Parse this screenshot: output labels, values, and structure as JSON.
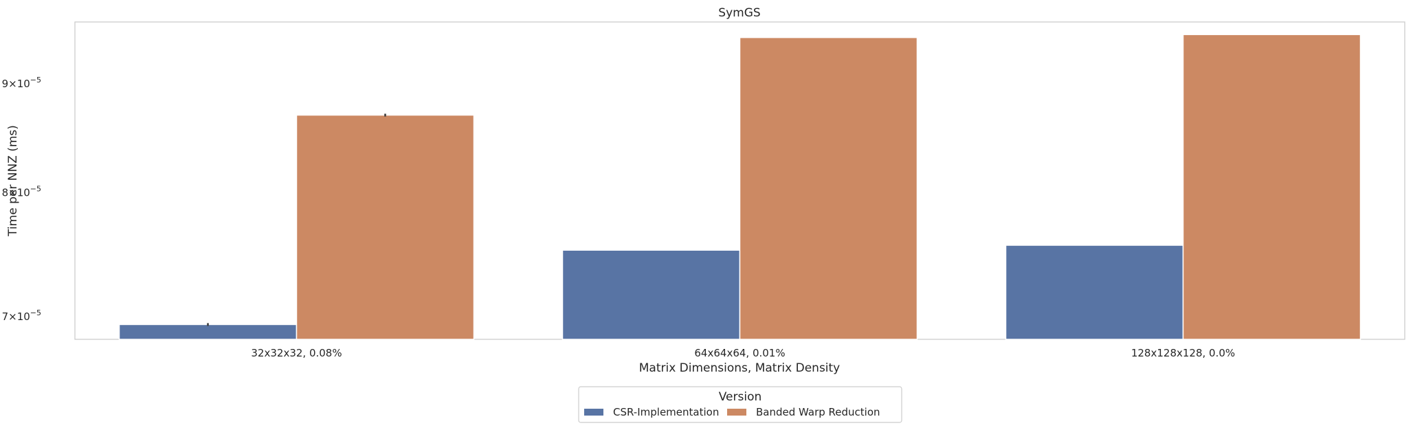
{
  "chart_data": {
    "type": "bar",
    "title": "SymGS",
    "xlabel": "Matrix Dimensions, Matrix Density",
    "ylabel": "Time per NNZ (ms)",
    "yscale": "log",
    "ylim": [
      6.83e-05,
      9.62e-05
    ],
    "yticks": [
      {
        "value": 7e-05,
        "mantissa": "7",
        "exponent": "−5"
      },
      {
        "value": 8e-05,
        "mantissa": "8",
        "exponent": "−5"
      },
      {
        "value": 9e-05,
        "mantissa": "9",
        "exponent": "−5"
      }
    ],
    "grid": false,
    "categories": [
      "32x32x32, 0.08%",
      "64x64x64, 0.01%",
      "128x128x128, 0.0%"
    ],
    "series": [
      {
        "name": "CSR-Implementation",
        "color": "#5874a4",
        "values": [
          6.94e-05,
          7.52e-05,
          7.56e-05
        ],
        "errors": [
          3e-09,
          0,
          0
        ]
      },
      {
        "name": "Banded Warp Reduction",
        "color": "#cc8963",
        "values": [
          8.7e-05,
          9.46e-05,
          9.49e-05
        ],
        "errors": [
          3e-09,
          0,
          0
        ]
      }
    ],
    "legend": {
      "title": "Version",
      "placement": "lower-center"
    }
  }
}
